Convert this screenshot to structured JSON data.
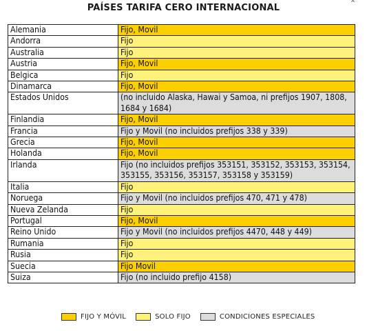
{
  "title": "PAÍSES TARIFA CERO INTERNACIONAL",
  "corner_mark": "x",
  "colors": {
    "fijo_movil": "#fcd000",
    "solo_fijo": "#fff27a",
    "especial": "#dcdcdc"
  },
  "rows": [
    {
      "country": "Alemania",
      "detail": "Fijo, Movil",
      "category": "fijo_movil"
    },
    {
      "country": "Andorra",
      "detail": "Fijo",
      "category": "solo_fijo"
    },
    {
      "country": "Australia",
      "detail": "Fijo",
      "category": "solo_fijo"
    },
    {
      "country": "Austria",
      "detail": "Fijo, Movil",
      "category": "fijo_movil"
    },
    {
      "country": "Belgica",
      "detail": "Fijo",
      "category": "solo_fijo"
    },
    {
      "country": "Dinamarca",
      "detail": "Fijo, Movil",
      "category": "fijo_movil"
    },
    {
      "country": "Estados Unidos",
      "detail": "(no incluido Alaska, Hawai y Samoa, ni prefijos 1907, 1808, 1684 y 1684)",
      "category": "especial"
    },
    {
      "country": "Finlandia",
      "detail": "Fijo, Movil",
      "category": "fijo_movil"
    },
    {
      "country": "Francia",
      "detail": "Fijo y Movil (no incluidos prefijos 338 y 339)",
      "category": "especial"
    },
    {
      "country": "Grecia",
      "detail": "Fijo, Movil",
      "category": "fijo_movil"
    },
    {
      "country": "Holanda",
      "detail": "Fijo, Movil",
      "category": "fijo_movil"
    },
    {
      "country": "Irlanda",
      "detail": "Fijo (no incluidos prefijos 353151, 353152, 353153, 353154, 353155, 353156, 353157, 353158 y 353159)",
      "category": "especial"
    },
    {
      "country": "Italia",
      "detail": "Fijo",
      "category": "solo_fijo"
    },
    {
      "country": "Noruega",
      "detail": "Fijo y Movil (no incluidos prefijos 470, 471 y 478)",
      "category": "especial"
    },
    {
      "country": "Nueva Zelanda",
      "detail": "Fijo",
      "category": "solo_fijo"
    },
    {
      "country": "Portugal",
      "detail": "Fijo, Movil",
      "category": "fijo_movil"
    },
    {
      "country": "Reino Unido",
      "detail": "Fijo y Movil (no incluidos prefijos 4470, 448 y 449)",
      "category": "especial"
    },
    {
      "country": "Rumania",
      "detail": "Fijo",
      "category": "solo_fijo"
    },
    {
      "country": "Rusia",
      "detail": "Fijo",
      "category": "solo_fijo"
    },
    {
      "country": "Suecia",
      "detail": "Fijo Movil",
      "category": "fijo_movil"
    },
    {
      "country": "Suiza",
      "detail": "Fijo (no incluido prefijo 4158)",
      "category": "especial"
    }
  ],
  "legend": [
    {
      "label": "FIJO Y MÓVIL",
      "category": "fijo_movil"
    },
    {
      "label": "SOLO FIJO",
      "category": "solo_fijo"
    },
    {
      "label": "CONDICIONES ESPECIALES",
      "category": "especial"
    }
  ]
}
